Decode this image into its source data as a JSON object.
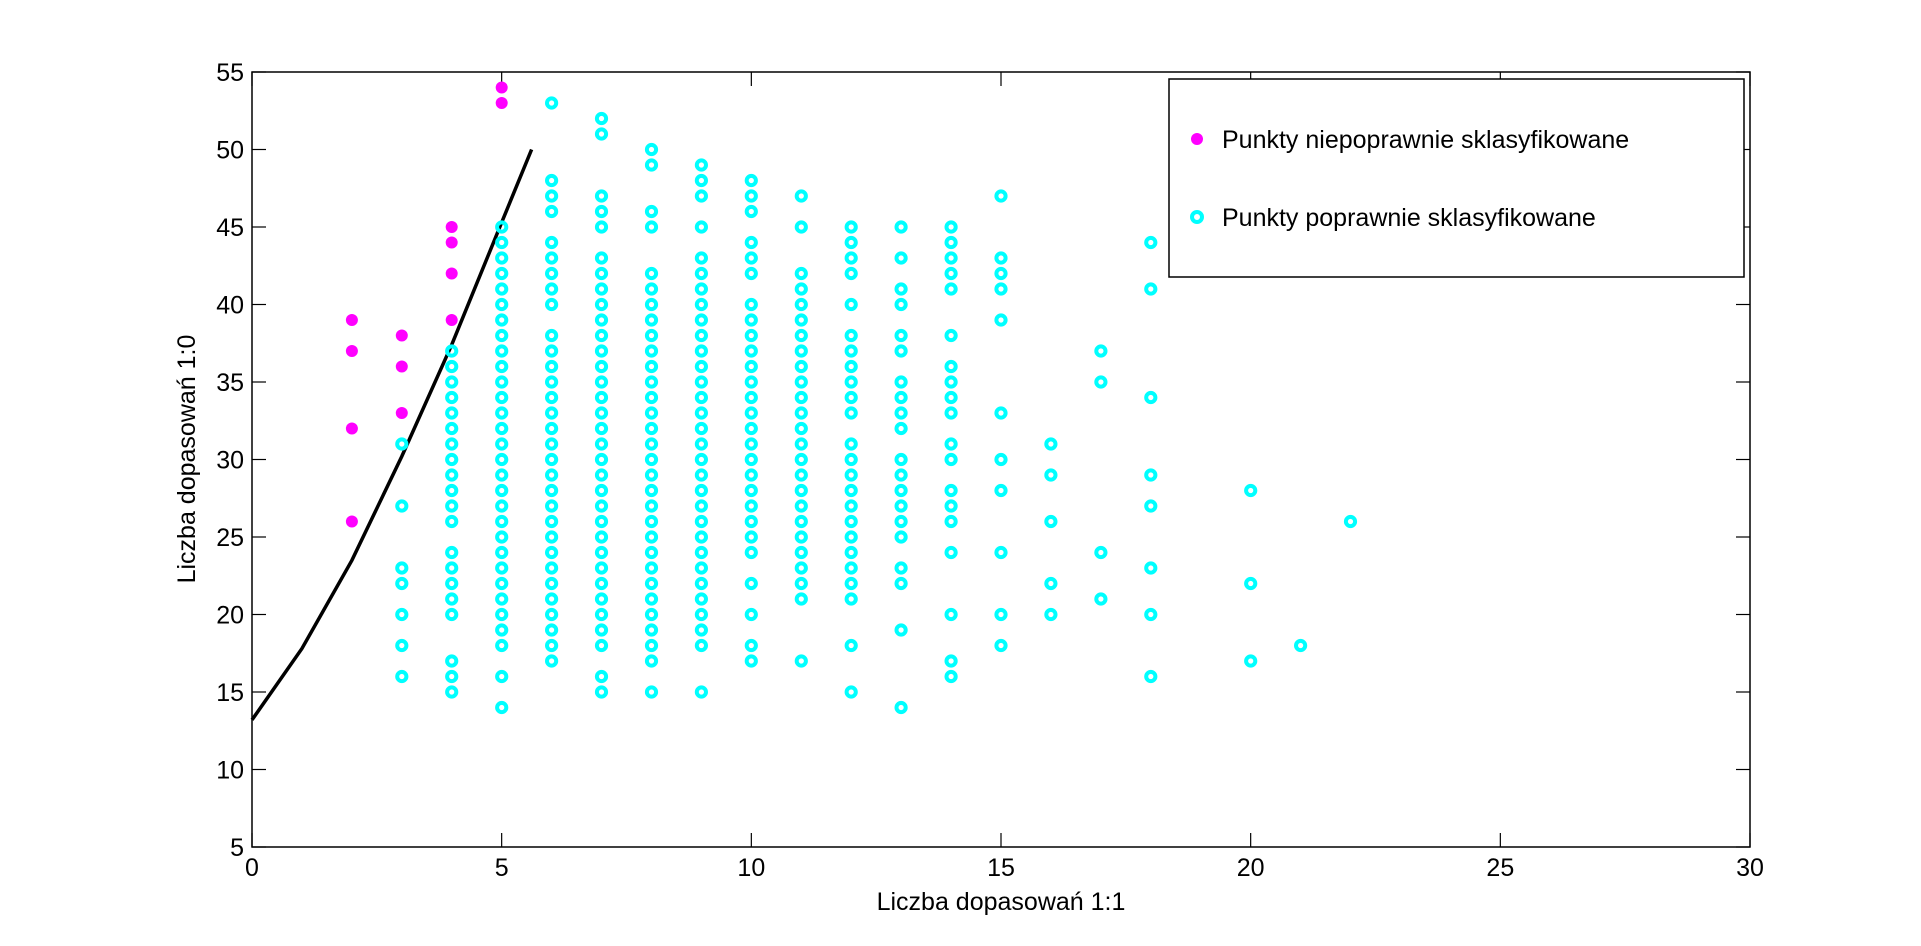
{
  "chart_data": {
    "type": "scatter",
    "xlabel": "Liczba dopasowań 1:1",
    "ylabel": "Liczba dopasowań 1:0",
    "xlim": [
      0,
      30
    ],
    "ylim": [
      5,
      55
    ],
    "xticks": [
      "0",
      "5",
      "10",
      "15",
      "20",
      "25",
      "30"
    ],
    "yticks": [
      "5",
      "10",
      "15",
      "20",
      "25",
      "30",
      "35",
      "40",
      "45",
      "50",
      "55"
    ],
    "grid": false,
    "legend_position": "top-right",
    "series": [
      {
        "name": "Punkty niepoprawnie sklasyfikowane",
        "color": "#ff00ff",
        "marker": "filled-circle",
        "points": [
          [
            2,
            39
          ],
          [
            2,
            37
          ],
          [
            2,
            32
          ],
          [
            2,
            26
          ],
          [
            3,
            38
          ],
          [
            3,
            36
          ],
          [
            3,
            33
          ],
          [
            4,
            45
          ],
          [
            4,
            44
          ],
          [
            4,
            42
          ],
          [
            4,
            39
          ],
          [
            5,
            54
          ],
          [
            5,
            53
          ]
        ]
      },
      {
        "name": "Punkty poprawnie sklasyfikowane",
        "color": "#00ffff",
        "marker": "ring",
        "columns": [
          {
            "x": 3,
            "y": [
              31,
              27,
              23,
              22,
              20,
              18,
              16
            ]
          },
          {
            "x": 4,
            "y": [
              37,
              36,
              35,
              34,
              33,
              32,
              31,
              30,
              29,
              28,
              27,
              26,
              24,
              23,
              22,
              21,
              20,
              17,
              16,
              15
            ]
          },
          {
            "x": 5,
            "y": [
              45,
              44,
              43,
              42,
              41,
              40,
              39,
              38,
              37,
              36,
              35,
              34,
              33,
              32,
              31,
              30,
              29,
              28,
              27,
              26,
              25,
              24,
              23,
              22,
              21,
              20,
              19,
              18,
              16,
              14
            ]
          },
          {
            "x": 6,
            "y": [
              53,
              48,
              47,
              46,
              44,
              43,
              42,
              41,
              40,
              38,
              37,
              36,
              35,
              34,
              33,
              32,
              31,
              30,
              29,
              28,
              27,
              26,
              25,
              24,
              23,
              22,
              21,
              20,
              19,
              18,
              17
            ]
          },
          {
            "x": 7,
            "y": [
              52,
              51,
              47,
              46,
              45,
              43,
              42,
              41,
              40,
              39,
              38,
              37,
              36,
              35,
              34,
              33,
              32,
              31,
              30,
              29,
              28,
              27,
              26,
              25,
              24,
              23,
              22,
              21,
              20,
              19,
              18,
              16,
              15
            ]
          },
          {
            "x": 8,
            "y": [
              50,
              49,
              46,
              45,
              42,
              41,
              40,
              39,
              38,
              37,
              36,
              35,
              34,
              33,
              32,
              31,
              30,
              29,
              28,
              27,
              26,
              25,
              24,
              23,
              22,
              21,
              20,
              19,
              18,
              17,
              15
            ]
          },
          {
            "x": 9,
            "y": [
              49,
              48,
              47,
              45,
              43,
              42,
              41,
              40,
              39,
              38,
              37,
              36,
              35,
              34,
              33,
              32,
              31,
              30,
              29,
              28,
              27,
              26,
              25,
              24,
              23,
              22,
              21,
              20,
              19,
              18,
              15
            ]
          },
          {
            "x": 10,
            "y": [
              48,
              47,
              46,
              44,
              43,
              42,
              40,
              39,
              38,
              37,
              36,
              35,
              34,
              33,
              32,
              31,
              30,
              29,
              28,
              27,
              26,
              25,
              24,
              22,
              20,
              18,
              17
            ]
          },
          {
            "x": 11,
            "y": [
              47,
              45,
              42,
              41,
              40,
              39,
              38,
              37,
              36,
              35,
              34,
              33,
              32,
              31,
              30,
              29,
              28,
              27,
              26,
              25,
              24,
              23,
              22,
              21,
              17
            ]
          },
          {
            "x": 12,
            "y": [
              45,
              44,
              43,
              42,
              40,
              38,
              37,
              36,
              35,
              34,
              33,
              31,
              30,
              29,
              28,
              27,
              26,
              25,
              24,
              23,
              22,
              21,
              18,
              15
            ]
          },
          {
            "x": 13,
            "y": [
              45,
              43,
              41,
              40,
              38,
              37,
              35,
              34,
              33,
              32,
              30,
              29,
              28,
              27,
              26,
              25,
              23,
              22,
              19,
              14
            ]
          },
          {
            "x": 14,
            "y": [
              45,
              44,
              43,
              42,
              41,
              38,
              36,
              35,
              34,
              33,
              31,
              30,
              28,
              27,
              26,
              24,
              20,
              17,
              16
            ]
          },
          {
            "x": 15,
            "y": [
              47,
              43,
              42,
              41,
              39,
              33,
              30,
              28,
              24,
              20,
              18
            ]
          },
          {
            "x": 16,
            "y": [
              31,
              29,
              26,
              22,
              20
            ]
          },
          {
            "x": 17,
            "y": [
              37,
              35,
              24,
              21
            ]
          },
          {
            "x": 18,
            "y": [
              44,
              41,
              34,
              29,
              27,
              23,
              20,
              16
            ]
          },
          {
            "x": 20,
            "y": [
              28,
              22,
              17
            ]
          },
          {
            "x": 21,
            "y": [
              18
            ]
          },
          {
            "x": 22,
            "y": [
              26
            ]
          }
        ]
      }
    ],
    "decision_boundary": {
      "color": "#000000",
      "points": [
        [
          0,
          13.2
        ],
        [
          1,
          17.8
        ],
        [
          2,
          23.5
        ],
        [
          3,
          30.2
        ],
        [
          4,
          37.4
        ],
        [
          5,
          45.3
        ],
        [
          5.6,
          50
        ]
      ]
    }
  }
}
